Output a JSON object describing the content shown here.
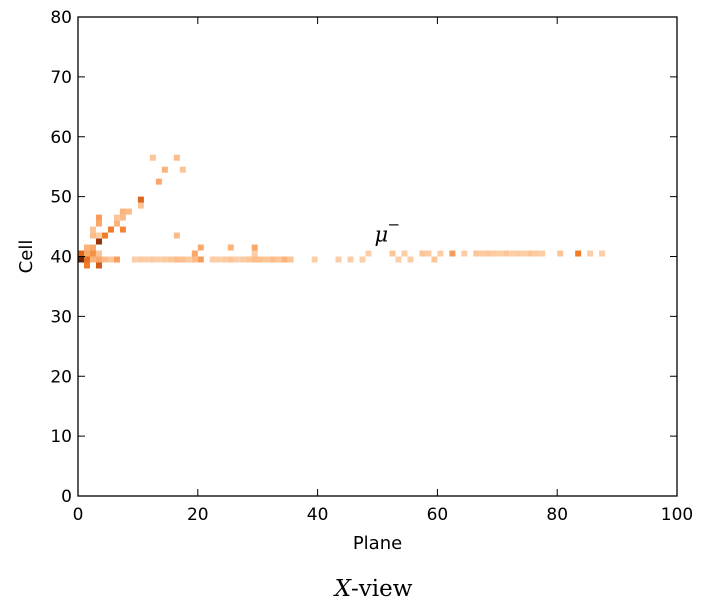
{
  "chart_data": {
    "type": "heatmap",
    "xlabel": "Plane",
    "ylabel": "Cell",
    "xlim": [
      0,
      100
    ],
    "ylim": [
      0,
      80
    ],
    "xticks": [
      0,
      20,
      40,
      60,
      80,
      100
    ],
    "yticks": [
      0,
      10,
      20,
      30,
      40,
      50,
      60,
      70,
      80
    ],
    "grid": false,
    "colormap": [
      "#fde0c5",
      "#fbb37a",
      "#f07b28",
      "#c0440b",
      "#5a1a05"
    ],
    "annotation": {
      "text": "μ",
      "superscript": "−",
      "x": 49.5,
      "y": 42.5
    },
    "caption": {
      "variable": "X",
      "rest": "-view"
    },
    "cells": [
      [
        0,
        39,
        0.95
      ],
      [
        1,
        39,
        0.55
      ],
      [
        1,
        38,
        0.5
      ],
      [
        2,
        39,
        0.25
      ],
      [
        3,
        39,
        0.3
      ],
      [
        3,
        38,
        0.65
      ],
      [
        4,
        39,
        0.2
      ],
      [
        5,
        39,
        0.15
      ],
      [
        6,
        39,
        0.35
      ],
      [
        9,
        39,
        0.1
      ],
      [
        10,
        39,
        0.12
      ],
      [
        11,
        39,
        0.1
      ],
      [
        12,
        39,
        0.12
      ],
      [
        13,
        39,
        0.1
      ],
      [
        14,
        39,
        0.12
      ],
      [
        15,
        39,
        0.15
      ],
      [
        16,
        39,
        0.2
      ],
      [
        17,
        39,
        0.18
      ],
      [
        18,
        39,
        0.12
      ],
      [
        19,
        39,
        0.2
      ],
      [
        20,
        39,
        0.35
      ],
      [
        22,
        39,
        0.1
      ],
      [
        23,
        39,
        0.1
      ],
      [
        24,
        39,
        0.12
      ],
      [
        25,
        39,
        0.15
      ],
      [
        26,
        39,
        0.1
      ],
      [
        27,
        39,
        0.12
      ],
      [
        28,
        39,
        0.15
      ],
      [
        29,
        39,
        0.2
      ],
      [
        30,
        39,
        0.18
      ],
      [
        31,
        39,
        0.15
      ],
      [
        32,
        39,
        0.2
      ],
      [
        33,
        39,
        0.15
      ],
      [
        34,
        39,
        0.25
      ],
      [
        35,
        39,
        0.15
      ],
      [
        39,
        39,
        0.1
      ],
      [
        43,
        39,
        0.1
      ],
      [
        45,
        39,
        0.1
      ],
      [
        47,
        39,
        0.1
      ],
      [
        53,
        39,
        0.1
      ],
      [
        55,
        39,
        0.1
      ],
      [
        59,
        39,
        0.15
      ],
      [
        0,
        40,
        0.6
      ],
      [
        1,
        40,
        0.3
      ],
      [
        2,
        40,
        0.4
      ],
      [
        3,
        40,
        0.15
      ],
      [
        19,
        40,
        0.3
      ],
      [
        29,
        40,
        0.1
      ],
      [
        48,
        40,
        0.1
      ],
      [
        52,
        40,
        0.15
      ],
      [
        54,
        40,
        0.1
      ],
      [
        57,
        40,
        0.15
      ],
      [
        58,
        40,
        0.12
      ],
      [
        60,
        40,
        0.1
      ],
      [
        62,
        40,
        0.35
      ],
      [
        64,
        40,
        0.1
      ],
      [
        66,
        40,
        0.15
      ],
      [
        67,
        40,
        0.12
      ],
      [
        68,
        40,
        0.15
      ],
      [
        69,
        40,
        0.12
      ],
      [
        70,
        40,
        0.1
      ],
      [
        71,
        40,
        0.15
      ],
      [
        72,
        40,
        0.1
      ],
      [
        73,
        40,
        0.12
      ],
      [
        74,
        40,
        0.1
      ],
      [
        75,
        40,
        0.15
      ],
      [
        76,
        40,
        0.12
      ],
      [
        77,
        40,
        0.1
      ],
      [
        80,
        40,
        0.15
      ],
      [
        83,
        40,
        0.5
      ],
      [
        85,
        40,
        0.1
      ],
      [
        87,
        40,
        0.1
      ],
      [
        1,
        41,
        0.25
      ],
      [
        2,
        41,
        0.3
      ],
      [
        20,
        41,
        0.3
      ],
      [
        25,
        41,
        0.25
      ],
      [
        29,
        41,
        0.3
      ],
      [
        2,
        43,
        0.2
      ],
      [
        3,
        42,
        0.85
      ],
      [
        3,
        43,
        0.1
      ],
      [
        2,
        44,
        0.15
      ],
      [
        4,
        43,
        0.5
      ],
      [
        5,
        44,
        0.5
      ],
      [
        3,
        45,
        0.3
      ],
      [
        3,
        46,
        0.35
      ],
      [
        6,
        45,
        0.25
      ],
      [
        6,
        46,
        0.15
      ],
      [
        7,
        44,
        0.45
      ],
      [
        7,
        46,
        0.2
      ],
      [
        7,
        47,
        0.25
      ],
      [
        8,
        47,
        0.2
      ],
      [
        10,
        48,
        0.15
      ],
      [
        10,
        49,
        0.6
      ],
      [
        12,
        56,
        0.15
      ],
      [
        13,
        52,
        0.3
      ],
      [
        14,
        54,
        0.25
      ],
      [
        16,
        56,
        0.2
      ],
      [
        16,
        43,
        0.2
      ],
      [
        17,
        54,
        0.15
      ]
    ]
  }
}
